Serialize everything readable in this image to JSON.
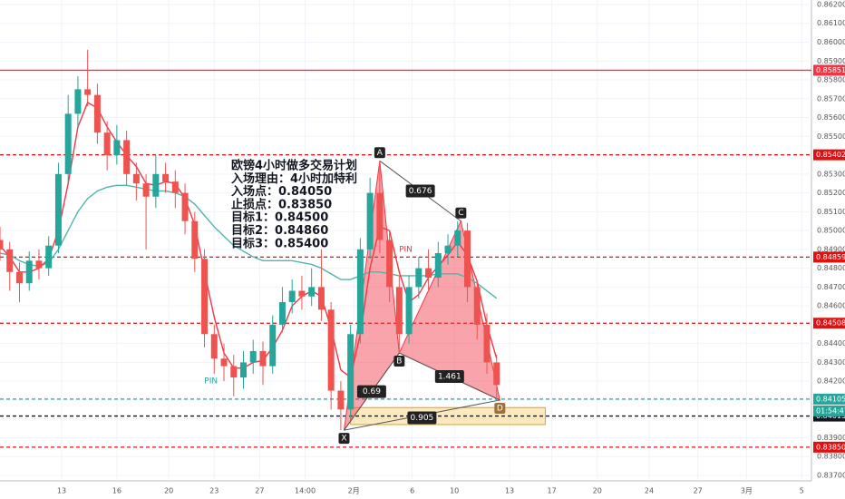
{
  "chart_data": {
    "type": "candlestick",
    "grid": true,
    "up_color": "#26a69a",
    "down_color": "#ef5350",
    "xlim": [
      0,
      250
    ],
    "ylim": [
      0.83671,
      0.86224
    ],
    "xticks": [
      {
        "value": 19,
        "label": "13"
      },
      {
        "value": 36,
        "label": "16"
      },
      {
        "value": 52,
        "label": "20"
      },
      {
        "value": 66,
        "label": "23"
      },
      {
        "value": 80,
        "label": "27"
      },
      {
        "value": 94,
        "label": "14:00"
      },
      {
        "value": 109,
        "label": "2月"
      },
      {
        "value": 127,
        "label": "6"
      },
      {
        "value": 140,
        "label": "10"
      },
      {
        "value": 157,
        "label": "13"
      },
      {
        "value": 170,
        "label": "17"
      },
      {
        "value": 184,
        "label": "20"
      },
      {
        "value": 200,
        "label": "24"
      },
      {
        "value": 215,
        "label": "27"
      },
      {
        "value": 230,
        "label": "3月"
      },
      {
        "value": 247,
        "label": "5"
      }
    ],
    "yticks": [
      {
        "value": 0.862,
        "label": "0.86200"
      },
      {
        "value": 0.861,
        "label": "0.86100"
      },
      {
        "value": 0.86,
        "label": "0.86000"
      },
      {
        "value": 0.859,
        "label": "0.85900"
      },
      {
        "value": 0.858,
        "label": "0.85800"
      },
      {
        "value": 0.857,
        "label": "0.85700"
      },
      {
        "value": 0.856,
        "label": "0.85600"
      },
      {
        "value": 0.855,
        "label": "0.85500"
      },
      {
        "value": 0.854,
        "label": "0.85400"
      },
      {
        "value": 0.853,
        "label": "0.85300"
      },
      {
        "value": 0.852,
        "label": "0.85200"
      },
      {
        "value": 0.851,
        "label": "0.85100"
      },
      {
        "value": 0.85,
        "label": "0.85000"
      },
      {
        "value": 0.849,
        "label": "0.84900"
      },
      {
        "value": 0.848,
        "label": "0.84800"
      },
      {
        "value": 0.847,
        "label": "0.84700"
      },
      {
        "value": 0.846,
        "label": "0.84600"
      },
      {
        "value": 0.845,
        "label": "0.84500"
      },
      {
        "value": 0.844,
        "label": "0.84400"
      },
      {
        "value": 0.843,
        "label": "0.84300"
      },
      {
        "value": 0.842,
        "label": "0.84200"
      },
      {
        "value": 0.841,
        "label": "0.84100"
      },
      {
        "value": 0.84,
        "label": "0.84000"
      },
      {
        "value": 0.839,
        "label": "0.83900"
      },
      {
        "value": 0.838,
        "label": "0.83800"
      },
      {
        "value": 0.837,
        "label": "0.83700"
      }
    ],
    "x": [
      0,
      3,
      6,
      9,
      12,
      15,
      18,
      21,
      24,
      27,
      30,
      33,
      36,
      39,
      42,
      45,
      48,
      51,
      54,
      57,
      60,
      63,
      66,
      69,
      72,
      75,
      78,
      81,
      84,
      87,
      90,
      93,
      96,
      99,
      102,
      105,
      108,
      111,
      114,
      117,
      120,
      123,
      126,
      129,
      132,
      135,
      138,
      141,
      144,
      147,
      150,
      153
    ],
    "open": [
      0.8495,
      0.849,
      0.8478,
      0.8472,
      0.8484,
      0.848,
      0.8492,
      0.853,
      0.8562,
      0.8575,
      0.8572,
      0.8552,
      0.854,
      0.8548,
      0.853,
      0.8525,
      0.8518,
      0.853,
      0.8526,
      0.852,
      0.8505,
      0.8485,
      0.8445,
      0.8432,
      0.8428,
      0.8422,
      0.843,
      0.8436,
      0.8428,
      0.845,
      0.8462,
      0.8468,
      0.8465,
      0.847,
      0.8458,
      0.8415,
      0.8405,
      0.8445,
      0.849,
      0.852,
      0.8495,
      0.847,
      0.8445,
      0.847,
      0.848,
      0.8475,
      0.8488,
      0.8492,
      0.85,
      0.847,
      0.845,
      0.843
    ],
    "high": [
      0.8502,
      0.8494,
      0.8483,
      0.8489,
      0.849,
      0.8497,
      0.8536,
      0.8572,
      0.8582,
      0.8596,
      0.8578,
      0.8558,
      0.8556,
      0.8553,
      0.8536,
      0.853,
      0.854,
      0.8536,
      0.8532,
      0.8525,
      0.851,
      0.849,
      0.845,
      0.844,
      0.8434,
      0.8436,
      0.8442,
      0.8441,
      0.8455,
      0.847,
      0.8474,
      0.8476,
      0.848,
      0.849,
      0.8462,
      0.842,
      0.845,
      0.8496,
      0.8528,
      0.8537,
      0.85,
      0.8476,
      0.8476,
      0.8486,
      0.849,
      0.8494,
      0.8498,
      0.8505,
      0.8504,
      0.8474,
      0.8456,
      0.8434
    ],
    "low": [
      0.8484,
      0.8468,
      0.8462,
      0.8468,
      0.8474,
      0.8476,
      0.8488,
      0.8525,
      0.8555,
      0.8566,
      0.8546,
      0.8532,
      0.8535,
      0.8524,
      0.8516,
      0.849,
      0.8512,
      0.852,
      0.8512,
      0.8498,
      0.8478,
      0.8438,
      0.8424,
      0.842,
      0.8412,
      0.8416,
      0.8424,
      0.8418,
      0.8424,
      0.8446,
      0.8456,
      0.8458,
      0.846,
      0.8452,
      0.8405,
      0.8394,
      0.84,
      0.844,
      0.8485,
      0.8488,
      0.8462,
      0.8435,
      0.844,
      0.8464,
      0.8468,
      0.847,
      0.8482,
      0.8486,
      0.8462,
      0.8442,
      0.8424,
      0.841
    ],
    "close": [
      0.849,
      0.8478,
      0.8472,
      0.8484,
      0.848,
      0.8492,
      0.853,
      0.8562,
      0.8575,
      0.8572,
      0.8552,
      0.854,
      0.8548,
      0.853,
      0.8525,
      0.8518,
      0.853,
      0.8526,
      0.852,
      0.8505,
      0.8485,
      0.8445,
      0.8432,
      0.8428,
      0.8422,
      0.843,
      0.8436,
      0.8428,
      0.845,
      0.8462,
      0.8468,
      0.8465,
      0.847,
      0.8458,
      0.8415,
      0.8405,
      0.8445,
      0.849,
      0.852,
      0.8495,
      0.847,
      0.8445,
      0.847,
      0.848,
      0.8475,
      0.8488,
      0.8492,
      0.85,
      0.847,
      0.845,
      0.843,
      0.8418
    ],
    "lines": [
      {
        "color": "#4db6ac",
        "values": [
          0.8488,
          0.8487,
          0.8484,
          0.8482,
          0.8481,
          0.8483,
          0.849,
          0.85,
          0.851,
          0.8517,
          0.8521,
          0.8523,
          0.8524,
          0.8524,
          0.8523,
          0.8522,
          0.8521,
          0.8521,
          0.852,
          0.8518,
          0.8514,
          0.8508,
          0.8502,
          0.8497,
          0.8492,
          0.8489,
          0.8486,
          0.8484,
          0.8484,
          0.8484,
          0.8484,
          0.8483,
          0.8482,
          0.848,
          0.8477,
          0.8474,
          0.8474,
          0.8476,
          0.8478,
          0.8478,
          0.8477,
          0.8476,
          0.8476,
          0.8476,
          0.8476,
          0.8477,
          0.8477,
          0.8477,
          0.8475,
          0.8472,
          0.8468,
          0.8464
        ]
      },
      {
        "color": "#f23645",
        "values": [
          0.8492,
          0.8486,
          0.8478,
          0.8478,
          0.848,
          0.8485,
          0.85,
          0.8525,
          0.8555,
          0.8568,
          0.8565,
          0.8555,
          0.8547,
          0.854,
          0.8534,
          0.8525,
          0.8524,
          0.8526,
          0.8525,
          0.8517,
          0.8503,
          0.8478,
          0.8454,
          0.8435,
          0.8427,
          0.8427,
          0.843,
          0.8431,
          0.8438,
          0.8447,
          0.846,
          0.8465,
          0.8468,
          0.8465,
          0.8448,
          0.8426,
          0.8422,
          0.8445,
          0.848,
          0.8502,
          0.85,
          0.8478,
          0.8462,
          0.8466,
          0.8475,
          0.8481,
          0.8487,
          0.8494,
          0.8487,
          0.8473,
          0.845,
          0.8432
        ]
      }
    ],
    "levels": [
      {
        "value": 0.85851,
        "color": "#f23645",
        "dashed": false
      },
      {
        "value": 0.85402,
        "color": "#e01010",
        "dashed": true
      },
      {
        "value": 0.84859,
        "color": "#e01010",
        "dashed": true
      },
      {
        "value": 0.84508,
        "color": "#e01010",
        "dashed": true
      },
      {
        "value": 0.84105,
        "color": "#26a69a",
        "dashed": true
      },
      {
        "value": 0.84015,
        "color": "#131722",
        "dashed": true
      },
      {
        "value": 0.8385,
        "color": "#e01010",
        "dashed": true
      }
    ],
    "level_labels": [
      "0.85851",
      "0.85402",
      "0.84859",
      "0.84508",
      "0.84105",
      "0.84015",
      "0.83850"
    ],
    "countdown": "01:54:47",
    "zone": {
      "x": [
        108,
        168
      ],
      "price": [
        0.8397,
        0.8406
      ],
      "color": "#f5c242"
    },
    "pattern": {
      "points": [
        {
          "label": "X",
          "x": 106,
          "price": 0.8394
        },
        {
          "label": "A",
          "x": 117,
          "price": 0.8537
        },
        {
          "label": "B",
          "x": 123,
          "price": 0.8435
        },
        {
          "label": "C",
          "x": 142,
          "price": 0.8505
        },
        {
          "label": "D",
          "x": 154,
          "price": 0.841
        }
      ],
      "ratios": [
        0.676,
        0.69,
        1.461,
        0.905
      ],
      "color": "#f23645"
    },
    "pins": [
      {
        "label": "PIN",
        "x": 65,
        "price": 0.842,
        "color": "#26a69a"
      },
      {
        "label": "PIN",
        "x": 125,
        "price": 0.849,
        "color": "#f23645"
      }
    ],
    "annotation": [
      "欧镑4小时做多交易计划",
      "入场理由：4小时加特利",
      "入场点：0.84050",
      "止损点：0.83850",
      "目标1：0.84500",
      "目标2：0.84860",
      "目标3：0.85400"
    ]
  }
}
